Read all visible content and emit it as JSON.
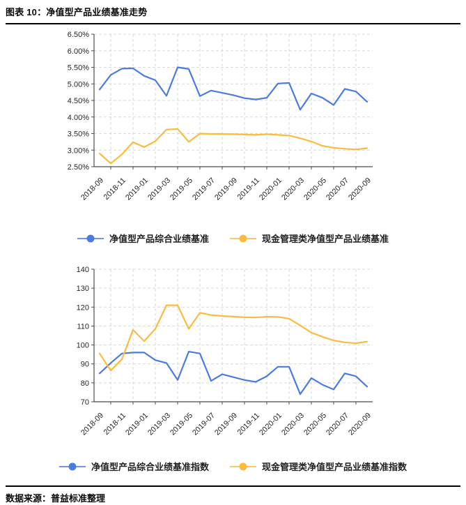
{
  "header": {
    "title": "图表 10：净值型产品业绩基准走势"
  },
  "source": {
    "text": "数据来源：普益标准整理"
  },
  "colors": {
    "blue": "#4A7BE0",
    "yellow": "#FBBC3E",
    "grid": "#d9d9d9",
    "axis": "#4d4d4d"
  },
  "chart_data": [
    {
      "type": "line",
      "title": "",
      "xlabel": "",
      "ylabel": "",
      "grid": "dashed-both",
      "legend_position": "bottom",
      "categories": [
        "2018-09",
        "2018-10",
        "2018-11",
        "2018-12",
        "2019-01",
        "2019-02",
        "2019-03",
        "2019-04",
        "2019-05",
        "2019-06",
        "2019-07",
        "2019-08",
        "2019-09",
        "2019-10",
        "2019-11",
        "2019-12",
        "2020-01",
        "2020-02",
        "2020-03",
        "2020-04",
        "2020-05",
        "2020-06",
        "2020-07",
        "2020-08",
        "2020-09"
      ],
      "x_tick_labels": [
        "2018-09",
        "2018-11",
        "2019-01",
        "2019-03",
        "2019-05",
        "2019-07",
        "2019-09",
        "2019-11",
        "2020-01",
        "2020-03",
        "2020-05",
        "2020-07",
        "2020-09"
      ],
      "ylim": [
        2.5,
        6.5
      ],
      "ytick_values": [
        6.5,
        6.0,
        5.5,
        5.0,
        4.5,
        4.0,
        3.5,
        3.0,
        2.5
      ],
      "ytick_format": "percent2",
      "series": [
        {
          "name": "净值型产品综合业绩基准",
          "color": "#4A7BE0",
          "values": [
            4.83,
            5.27,
            5.46,
            5.47,
            5.24,
            5.11,
            4.64,
            5.5,
            5.45,
            4.63,
            4.8,
            4.73,
            4.66,
            4.57,
            4.53,
            4.58,
            5.01,
            5.03,
            4.22,
            4.71,
            4.58,
            4.36,
            4.85,
            4.77,
            4.46
          ]
        },
        {
          "name": "现金管理类净值型产品业绩基准",
          "color": "#FBBC3E",
          "values": [
            2.9,
            2.6,
            2.87,
            3.24,
            3.09,
            3.27,
            3.62,
            3.64,
            3.25,
            3.5,
            3.49,
            3.49,
            3.48,
            3.47,
            3.46,
            3.48,
            3.46,
            3.44,
            3.36,
            3.26,
            3.13,
            3.07,
            3.04,
            3.02,
            3.06
          ]
        }
      ]
    },
    {
      "type": "line",
      "title": "",
      "xlabel": "",
      "ylabel": "",
      "grid": "dashed-both",
      "legend_position": "bottom",
      "categories": [
        "2018-09",
        "2018-10",
        "2018-11",
        "2018-12",
        "2019-01",
        "2019-02",
        "2019-03",
        "2019-04",
        "2019-05",
        "2019-06",
        "2019-07",
        "2019-08",
        "2019-09",
        "2019-10",
        "2019-11",
        "2019-12",
        "2020-01",
        "2020-02",
        "2020-03",
        "2020-04",
        "2020-05",
        "2020-06",
        "2020-07",
        "2020-08",
        "2020-09"
      ],
      "x_tick_labels": [
        "2018-09",
        "2018-11",
        "2019-01",
        "2019-03",
        "2019-05",
        "2019-07",
        "2019-09",
        "2019-11",
        "2020-01",
        "2020-03",
        "2020-05",
        "2020-07",
        "2020-09"
      ],
      "ylim": [
        70,
        140
      ],
      "ytick_values": [
        140,
        130,
        120,
        110,
        100,
        90,
        80,
        70
      ],
      "ytick_format": "integer",
      "series": [
        {
          "name": "净值型产品综合业绩基准指数",
          "color": "#4A7BE0",
          "values": [
            85,
            90.5,
            95.5,
            96,
            96,
            92,
            90.5,
            81.5,
            96.5,
            95.5,
            81,
            84.5,
            83,
            81.5,
            80.5,
            83.5,
            88.5,
            88.5,
            74,
            82.5,
            79,
            76.5,
            85,
            83.5,
            78
          ]
        },
        {
          "name": "现金管理类净值型产品业绩基准指数",
          "color": "#FBBC3E",
          "values": [
            95.5,
            86.5,
            92.5,
            108,
            102,
            108.5,
            121,
            121,
            108.5,
            117,
            115.8,
            115.3,
            115,
            114.6,
            114.5,
            114.9,
            114.8,
            113.9,
            110.3,
            106.5,
            104.3,
            102.4,
            101.4,
            100.9,
            101.8
          ]
        }
      ]
    }
  ]
}
